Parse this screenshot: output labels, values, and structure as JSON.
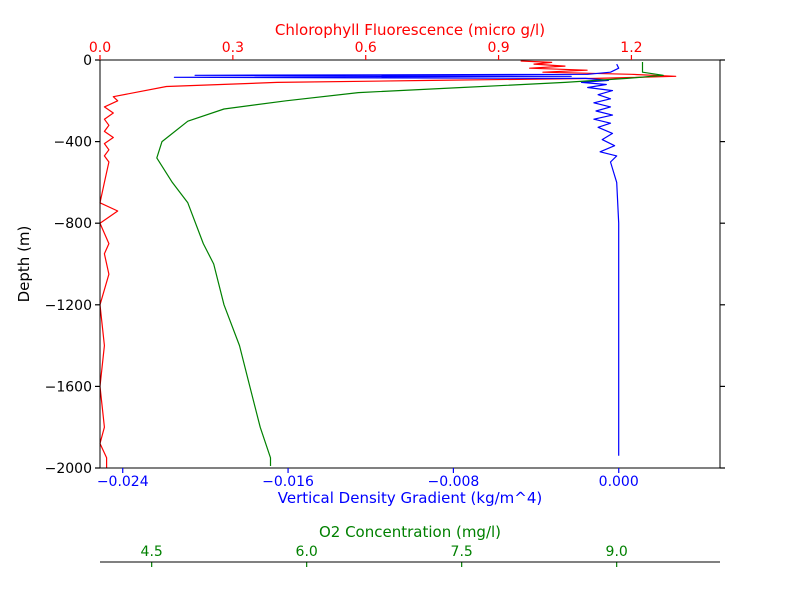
{
  "chart_data": {
    "type": "line",
    "colors": {
      "chlorophyll": "#ff0000",
      "density": "#0000ff",
      "oxygen": "#008000",
      "frame": "#000000"
    },
    "y_axis": {
      "label": "Depth (m)",
      "ticks": [
        0,
        -400,
        -800,
        -1200,
        -1600,
        -2000
      ],
      "tick_labels": [
        "0",
        "−400",
        "−800",
        "−1200",
        "−1600",
        "−2000"
      ],
      "lim": [
        -2000,
        0
      ]
    },
    "top_axis": {
      "label": "Chlorophyll Fluorescence (micro g/l)",
      "ticks": [
        0.0,
        0.3,
        0.6,
        0.9,
        1.2
      ],
      "tick_labels": [
        "0.0",
        "0.3",
        "0.6",
        "0.9",
        "1.2"
      ],
      "lim": [
        0.0,
        1.4
      ]
    },
    "bottom_axis": {
      "label": "Vertical Density Gradient (kg/m^4)",
      "ticks": [
        -0.024,
        -0.016,
        -0.008,
        0.0
      ],
      "tick_labels": [
        "−0.024",
        "−0.016",
        "−0.008",
        "0.000"
      ],
      "lim": [
        -0.0251,
        0.0049
      ]
    },
    "o2_axis": {
      "label": "O2 Concentration (mg/l)",
      "ticks": [
        4.5,
        6.0,
        7.5,
        9.0
      ],
      "tick_labels": [
        "4.5",
        "6.0",
        "7.5",
        "9.0"
      ],
      "lim": [
        4.0,
        10.0
      ]
    },
    "series": [
      {
        "axis": "top",
        "points": [
          [
            0.95,
            -5
          ],
          [
            1.02,
            -12
          ],
          [
            0.98,
            -20
          ],
          [
            1.05,
            -30
          ],
          [
            0.97,
            -40
          ],
          [
            1.1,
            -50
          ],
          [
            1.0,
            -60
          ],
          [
            1.2,
            -70
          ],
          [
            1.3,
            -80
          ],
          [
            1.12,
            -90
          ],
          [
            0.75,
            -100
          ],
          [
            0.4,
            -110
          ],
          [
            0.15,
            -130
          ],
          [
            0.03,
            -180
          ],
          [
            0.04,
            -200
          ],
          [
            0.01,
            -230
          ],
          [
            0.03,
            -260
          ],
          [
            0.01,
            -290
          ],
          [
            0.02,
            -320
          ],
          [
            0.01,
            -350
          ],
          [
            0.03,
            -380
          ],
          [
            0.01,
            -410
          ],
          [
            0.02,
            -440
          ],
          [
            0.01,
            -470
          ],
          [
            0.02,
            -500
          ],
          [
            0.01,
            -600
          ],
          [
            0.0,
            -700
          ],
          [
            0.04,
            -740
          ],
          [
            0.0,
            -800
          ],
          [
            0.02,
            -900
          ],
          [
            0.01,
            -950
          ],
          [
            0.02,
            -1050
          ],
          [
            0.0,
            -1200
          ],
          [
            0.01,
            -1400
          ],
          [
            0.0,
            -1600
          ],
          [
            0.01,
            -1800
          ],
          [
            0.0,
            -1880
          ],
          [
            0.015,
            -1950
          ],
          [
            0.015,
            -2000
          ]
        ]
      },
      {
        "axis": "bottom",
        "points": [
          [
            -0.0001,
            -20
          ],
          [
            0.0,
            -40
          ],
          [
            -0.0004,
            -60
          ],
          [
            -0.0015,
            -70
          ],
          [
            -0.0205,
            -75
          ],
          [
            -0.0023,
            -80
          ],
          [
            -0.0215,
            -85
          ],
          [
            -0.0016,
            -90
          ],
          [
            -0.0005,
            -100
          ],
          [
            -0.0018,
            -110
          ],
          [
            -0.0006,
            -120
          ],
          [
            -0.0015,
            -135
          ],
          [
            -0.0003,
            -150
          ],
          [
            -0.001,
            -170
          ],
          [
            -0.0004,
            -190
          ],
          [
            -0.0012,
            -210
          ],
          [
            -0.0004,
            -230
          ],
          [
            -0.0011,
            -250
          ],
          [
            -0.0003,
            -270
          ],
          [
            -0.0012,
            -290
          ],
          [
            -0.0004,
            -310
          ],
          [
            -0.001,
            -330
          ],
          [
            -0.0003,
            -360
          ],
          [
            -0.0008,
            -390
          ],
          [
            -0.0002,
            -420
          ],
          [
            -0.0009,
            -450
          ],
          [
            -0.0001,
            -470
          ],
          [
            -0.0004,
            -500
          ],
          [
            -0.0001,
            -600
          ],
          [
            0.0,
            -800
          ],
          [
            0.0,
            -1200
          ],
          [
            0.0,
            -1600
          ],
          [
            0.0,
            -1940
          ]
        ]
      },
      {
        "axis": "o2",
        "points": [
          [
            9.25,
            -10
          ],
          [
            9.25,
            -60
          ],
          [
            9.45,
            -75
          ],
          [
            9.1,
            -90
          ],
          [
            8.5,
            -110
          ],
          [
            7.5,
            -135
          ],
          [
            6.5,
            -160
          ],
          [
            5.8,
            -200
          ],
          [
            5.2,
            -240
          ],
          [
            4.85,
            -300
          ],
          [
            4.6,
            -400
          ],
          [
            4.55,
            -480
          ],
          [
            4.7,
            -600
          ],
          [
            4.85,
            -700
          ],
          [
            5.0,
            -900
          ],
          [
            5.1,
            -1000
          ],
          [
            5.2,
            -1200
          ],
          [
            5.35,
            -1400
          ],
          [
            5.45,
            -1600
          ],
          [
            5.55,
            -1800
          ],
          [
            5.65,
            -1950
          ],
          [
            5.65,
            -1990
          ]
        ]
      }
    ]
  }
}
